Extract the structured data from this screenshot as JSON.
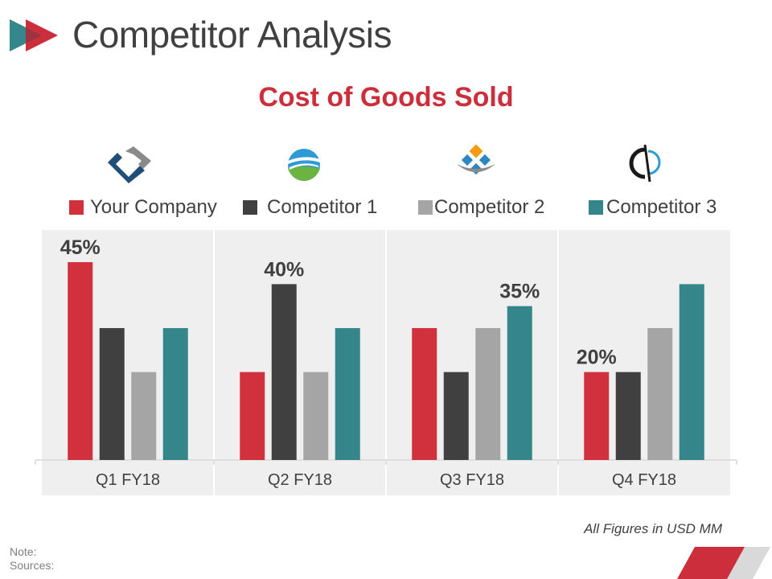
{
  "header": {
    "title": "Competitor Analysis"
  },
  "chart_data": {
    "type": "bar",
    "title": "Cost of Goods Sold",
    "categories": [
      "Q1 FY18",
      "Q2 FY18",
      "Q3 FY18",
      "Q4 FY18"
    ],
    "series": [
      {
        "name": "Your Company",
        "color": "#d0313d",
        "values": [
          45,
          20,
          30,
          20
        ]
      },
      {
        "name": "Competitor 1",
        "color": "#404040",
        "values": [
          30,
          40,
          20,
          20
        ]
      },
      {
        "name": "Competitor 2",
        "color": "#a5a5a5",
        "values": [
          20,
          20,
          30,
          30
        ]
      },
      {
        "name": "Competitor 3",
        "color": "#35868a",
        "values": [
          30,
          30,
          35,
          40
        ]
      }
    ],
    "data_labels": [
      {
        "category": "Q1 FY18",
        "series": "Your Company",
        "text": "45%"
      },
      {
        "category": "Q2 FY18",
        "series": "Competitor 1",
        "text": "40%"
      },
      {
        "category": "Q3 FY18",
        "series": "Competitor 3",
        "text": "35%"
      },
      {
        "category": "Q4 FY18",
        "series": "Your Company",
        "text": "20%"
      }
    ],
    "ylim": [
      0,
      50
    ],
    "xlabel": "",
    "ylabel": "",
    "legend_position": "top"
  },
  "logos": [
    {
      "name": "company-logo-1-icon",
      "colors": [
        "#1f4e79",
        "#8a8a8a"
      ]
    },
    {
      "name": "company-logo-2-icon",
      "colors": [
        "#2e9bd6",
        "#6cb33f"
      ]
    },
    {
      "name": "company-logo-3-icon",
      "colors": [
        "#f39c12",
        "#2e86c1"
      ]
    },
    {
      "name": "company-logo-4-icon",
      "colors": [
        "#1a1a1a",
        "#2e9bd6"
      ]
    }
  ],
  "footer": {
    "units_note": "All Figures in USD MM",
    "note_label": "Note:",
    "sources_label": "Sources:"
  },
  "colors": {
    "accent": "#cc2e3b",
    "teal": "#35868a",
    "band": "#efefef"
  }
}
